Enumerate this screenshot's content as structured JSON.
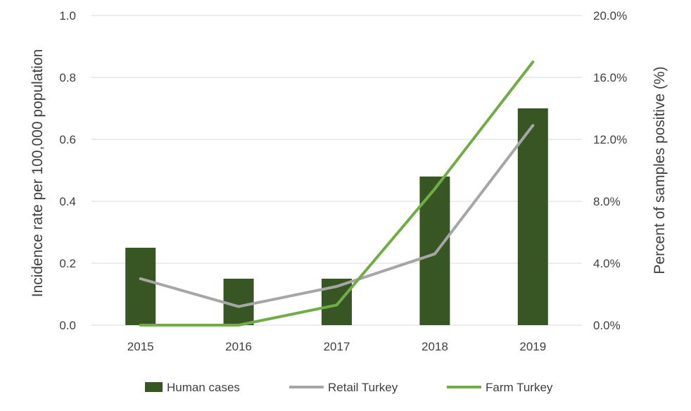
{
  "chart_data": {
    "type": "bar+line",
    "categories": [
      "2015",
      "2016",
      "2017",
      "2018",
      "2019"
    ],
    "series": [
      {
        "name": "Human cases",
        "type": "bar",
        "axis": "left",
        "color": "#375623",
        "values": [
          0.25,
          0.15,
          0.15,
          0.48,
          0.7
        ]
      },
      {
        "name": "Retail Turkey",
        "type": "line",
        "axis": "right",
        "color": "#a6a6a6",
        "values": [
          3.0,
          1.2,
          2.5,
          4.6,
          12.9
        ]
      },
      {
        "name": "Farm Turkey",
        "type": "line",
        "axis": "right",
        "color": "#70ad47",
        "values": [
          0.0,
          0.0,
          1.3,
          8.8,
          17.0
        ]
      }
    ],
    "left_axis": {
      "label": "Incidence rate per 100,000 population",
      "range": [
        0,
        1.0
      ],
      "ticks": [
        "0.0",
        "0.2",
        "0.4",
        "0.6",
        "0.8",
        "1.0"
      ]
    },
    "right_axis": {
      "label": "Percent of samples positive (%)",
      "range": [
        0,
        20
      ],
      "ticks": [
        "0.0%",
        "4.0%",
        "8.0%",
        "12.0%",
        "16.0%",
        "20.0%"
      ]
    },
    "xlabel": "",
    "grid": true,
    "gridline_color": "#d9d9d9",
    "legend_position": "bottom"
  }
}
